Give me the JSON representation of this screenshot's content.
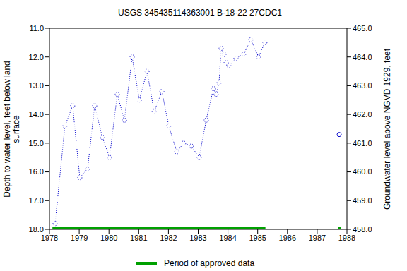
{
  "chart_data": {
    "type": "line",
    "title": "USGS 345435114363001 B-18-22 27CDC1",
    "y_label": "Depth to water level, feet below land\nsurface",
    "y2_label": "Groundwater level above NGVD 1929, feet",
    "xlim": [
      1978,
      1988
    ],
    "xticks": [
      1978,
      1979,
      1980,
      1981,
      1982,
      1983,
      1984,
      1985,
      1986,
      1987,
      1988
    ],
    "ylim": [
      18,
      11
    ],
    "yticks": [
      {
        "value": 11,
        "label": "11.0"
      },
      {
        "value": 12,
        "label": "12.0"
      },
      {
        "value": 13,
        "label": "13.0"
      },
      {
        "value": 14,
        "label": "14.0"
      },
      {
        "value": 15,
        "label": "15.0"
      },
      {
        "value": 16,
        "label": "16.0"
      },
      {
        "value": 17,
        "label": "17.0"
      },
      {
        "value": 18,
        "label": "18.0"
      }
    ],
    "y2lim": [
      458,
      465
    ],
    "y2ticks": [
      {
        "value": 458,
        "label": "458.0"
      },
      {
        "value": 459,
        "label": "459.0"
      },
      {
        "value": 460,
        "label": "460.0"
      },
      {
        "value": 461,
        "label": "461.0"
      },
      {
        "value": 462,
        "label": "462.0"
      },
      {
        "value": 463,
        "label": "463.0"
      },
      {
        "value": 464,
        "label": "464.0"
      },
      {
        "value": 465,
        "label": "465.0"
      }
    ],
    "series": [
      {
        "color": "#0000cc",
        "marker": "circle",
        "line_style": "dotted",
        "x": [
          1978.19,
          1978.52,
          1978.78,
          1979.02,
          1979.28,
          1979.52,
          1979.78,
          1980.02,
          1980.28,
          1980.52,
          1980.78,
          1981.02,
          1981.28,
          1981.52,
          1981.78,
          1982.01,
          1982.28,
          1982.51,
          1982.77,
          1983.03,
          1983.27,
          1983.51,
          1983.6,
          1983.7,
          1983.77,
          1983.87,
          1983.94,
          1984.03,
          1984.27,
          1984.53,
          1984.77,
          1985.03,
          1985.24
        ],
        "values": [
          17.8,
          14.4,
          13.7,
          16.2,
          15.9,
          13.7,
          14.8,
          15.5,
          13.3,
          14.2,
          12.0,
          13.5,
          12.5,
          13.9,
          13.2,
          14.4,
          15.3,
          15.0,
          15.1,
          15.5,
          14.2,
          13.1,
          13.3,
          12.9,
          11.7,
          11.9,
          12.2,
          12.3,
          12.05,
          11.9,
          11.4,
          12.0,
          11.5
        ]
      },
      {
        "color": "#0000cc",
        "marker": "circle",
        "line_style": "none",
        "x": [
          1987.74
        ],
        "values": [
          14.7
        ]
      }
    ],
    "approved_periods": {
      "name": "Period of approved data",
      "color": "#00a000",
      "ranges": [
        [
          1978.1,
          1985.26
        ],
        [
          1987.7,
          1987.8
        ]
      ]
    }
  }
}
